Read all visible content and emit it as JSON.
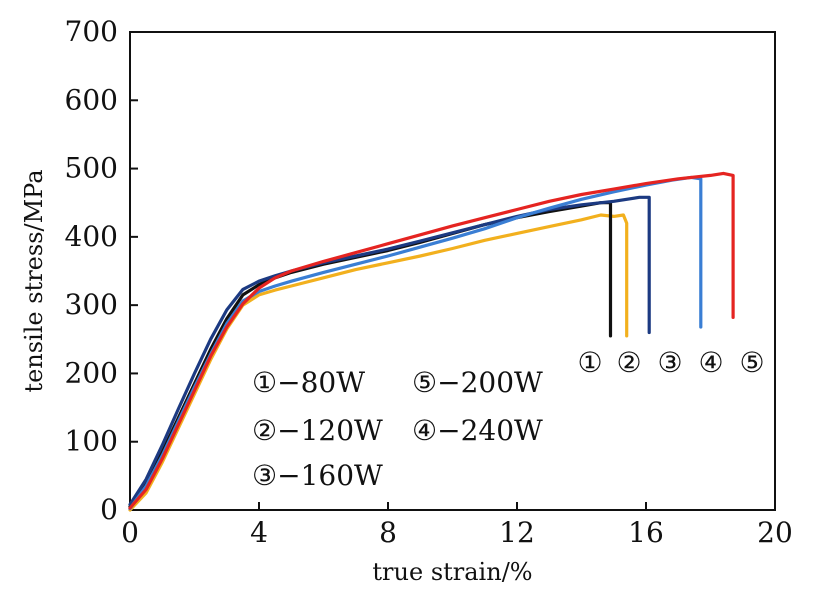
{
  "chart_data": {
    "type": "line",
    "title": "",
    "xlabel": "true strain/%",
    "ylabel": "tensile stress/MPa",
    "xlim": [
      0,
      20
    ],
    "ylim": [
      0,
      700
    ],
    "xticks": [
      0,
      4,
      8,
      12,
      16,
      20
    ],
    "yticks": [
      0,
      100,
      200,
      300,
      400,
      500,
      600,
      700
    ],
    "grid": false,
    "legend": {
      "placement": "lower-center",
      "entries": [
        "①−80W",
        "⑤−200W",
        "②−120W",
        "④−240W",
        "③−160W"
      ]
    },
    "end_markers": [
      "①",
      "②",
      "③",
      "④",
      "⑤"
    ],
    "series": [
      {
        "name": "①−80W",
        "color": "#111111",
        "x": [
          0,
          0.5,
          1,
          1.5,
          2,
          2.5,
          3,
          3.5,
          4,
          4.5,
          5,
          6,
          7,
          8,
          9,
          10,
          11,
          12,
          13,
          14,
          14.6,
          14.9,
          14.9
        ],
        "y": [
          5,
          40,
          85,
          135,
          185,
          235,
          280,
          315,
          330,
          340,
          348,
          360,
          370,
          380,
          392,
          405,
          418,
          428,
          437,
          445,
          450,
          450,
          255
        ]
      },
      {
        "name": "②−120W",
        "color": "#f2b01e",
        "x": [
          0,
          0.5,
          1,
          1.5,
          2,
          2.5,
          3,
          3.5,
          4,
          4.5,
          5,
          6,
          7,
          8,
          9,
          10,
          11,
          12,
          13,
          14,
          14.6,
          15,
          15.3,
          15.4,
          15.4
        ],
        "y": [
          0,
          25,
          70,
          120,
          170,
          220,
          265,
          300,
          315,
          322,
          328,
          340,
          352,
          362,
          372,
          383,
          395,
          405,
          415,
          425,
          432,
          430,
          432,
          420,
          255
        ]
      },
      {
        "name": "③−160W",
        "color": "#1c3a82",
        "x": [
          0,
          0.5,
          1,
          1.5,
          2,
          2.5,
          3,
          3.5,
          4,
          4.5,
          5,
          6,
          7,
          8,
          9,
          10,
          11,
          12,
          13,
          14,
          15,
          15.8,
          16.1,
          16.1
        ],
        "y": [
          8,
          45,
          95,
          148,
          200,
          250,
          293,
          323,
          335,
          343,
          350,
          362,
          372,
          382,
          394,
          406,
          418,
          430,
          440,
          447,
          452,
          458,
          458,
          260
        ]
      },
      {
        "name": "④−240W",
        "color": "#3a7ed4",
        "x": [
          0,
          0.5,
          1,
          1.5,
          2,
          2.5,
          3,
          3.5,
          4,
          4.5,
          5,
          6,
          7,
          8,
          9,
          10,
          11,
          12,
          13,
          14,
          15,
          16,
          16.8,
          17.4,
          17.7,
          17.7
        ],
        "y": [
          2,
          35,
          80,
          130,
          180,
          228,
          273,
          306,
          320,
          328,
          335,
          348,
          360,
          372,
          385,
          398,
          412,
          428,
          442,
          455,
          466,
          476,
          483,
          487,
          485,
          268
        ]
      },
      {
        "name": "⑤−200W",
        "color": "#e52421",
        "x": [
          0,
          0.5,
          1,
          1.5,
          2,
          2.5,
          3,
          3.5,
          4,
          4.5,
          5,
          6,
          7,
          8,
          9,
          10,
          11,
          12,
          13,
          14,
          15,
          16,
          17,
          18,
          18.4,
          18.7,
          18.7
        ],
        "y": [
          3,
          30,
          75,
          125,
          175,
          225,
          268,
          302,
          325,
          340,
          350,
          364,
          377,
          390,
          403,
          416,
          428,
          440,
          452,
          462,
          470,
          478,
          485,
          490,
          493,
          490,
          282
        ]
      }
    ]
  }
}
